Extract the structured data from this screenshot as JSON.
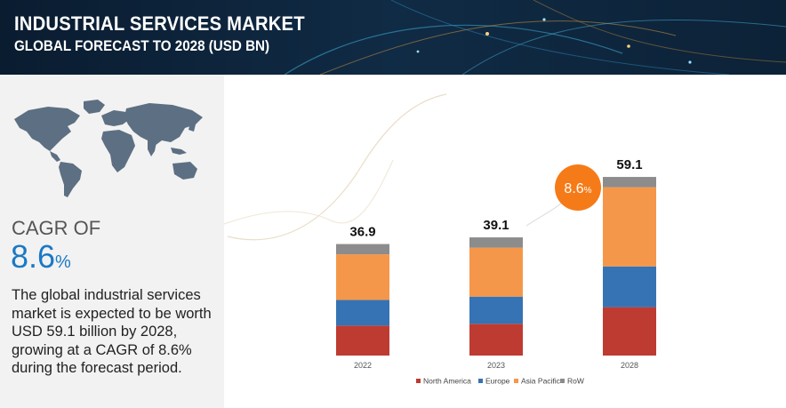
{
  "header": {
    "title": "INDUSTRIAL SERVICES MARKET",
    "subtitle": "GLOBAL FORECAST TO 2028 (USD BN)"
  },
  "summary": {
    "cagr_label": "CAGR OF",
    "cagr_value": "8.6",
    "cagr_unit": "%",
    "description": "The global industrial services market is expected to be worth USD 59.1 billion by 2028, growing at a CAGR of 8.6% during the forecast period."
  },
  "colors": {
    "north_america": "#be3b32",
    "europe": "#3673b4",
    "asia_pacific": "#f5974a",
    "row": "#8c8c8c",
    "bubble": "#f57b18",
    "accent_blue": "#1b79c4",
    "header_bg": "#0d2135"
  },
  "icons": [
    "world-map-icon"
  ],
  "chart_data": {
    "type": "bar",
    "stacked": true,
    "categories": [
      "2022",
      "2023",
      "2028"
    ],
    "totals": [
      36.9,
      39.1,
      59.1
    ],
    "series": [
      {
        "name": "North America",
        "values": [
          9.9,
          10.5,
          16.0
        ]
      },
      {
        "name": "Europe",
        "values": [
          8.5,
          9.0,
          13.5
        ]
      },
      {
        "name": "Asia Pacific",
        "values": [
          15.1,
          16.2,
          26.2
        ]
      },
      {
        "name": "RoW",
        "values": [
          3.4,
          3.4,
          3.4
        ]
      }
    ],
    "annotation": {
      "text": "8.6",
      "unit": "%"
    },
    "ylim": [
      0,
      66
    ],
    "legend_position": "bottom",
    "grid": false
  }
}
